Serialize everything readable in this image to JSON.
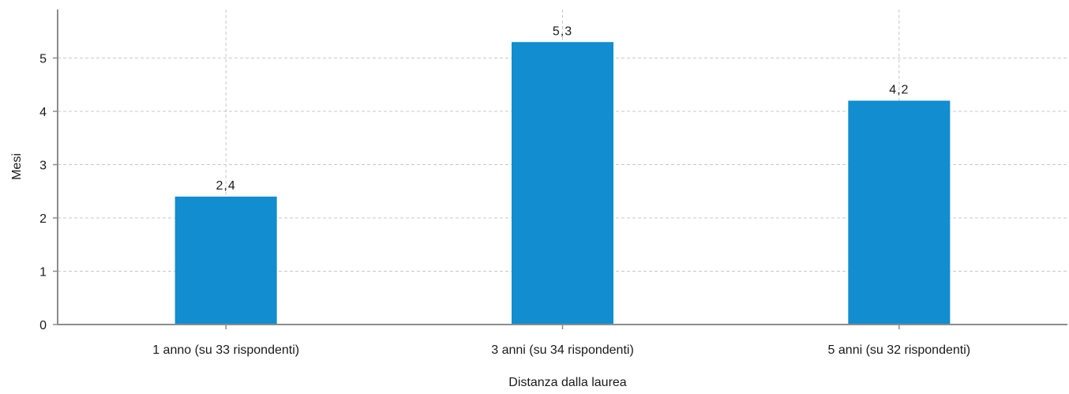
{
  "chart_data": {
    "type": "bar",
    "categories": [
      "1 anno (su 33 rispondenti)",
      "3 anni (su 34 rispondenti)",
      "5 anni (su 32 rispondenti)"
    ],
    "values": [
      2.4,
      5.3,
      4.2
    ],
    "data_labels": [
      "2,4",
      "5,3",
      "4,2"
    ],
    "xlabel": "Distanza dalla laurea",
    "ylabel": "Mesi",
    "ylim": [
      0,
      5.9
    ],
    "yticks": [
      0,
      1,
      2,
      3,
      4,
      5
    ],
    "grid": true,
    "legend": "none",
    "colors": {
      "bar": "#118dd0",
      "grid": "#c8c8c8",
      "axis": "#8c8c8c"
    }
  }
}
